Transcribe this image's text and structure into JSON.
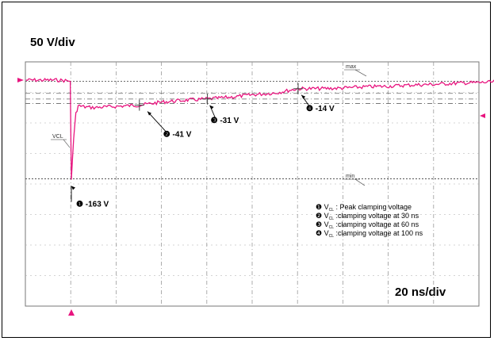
{
  "chart_data": {
    "type": "line",
    "vertical_scale": "50 V/div",
    "horizontal_scale": "20 ns/div",
    "grid": true,
    "trace_color": "#e8157f",
    "marker_labels": {
      "max": "max",
      "min": "min",
      "vcl": "VCL"
    },
    "series": [
      {
        "x_ns": [
          -20,
          -6,
          -2,
          -0.5,
          0,
          1,
          2,
          3,
          6,
          10,
          20,
          30,
          40,
          50,
          60,
          70,
          80,
          90,
          100,
          110,
          120,
          130,
          140,
          150,
          160,
          170,
          180,
          190,
          200
        ],
        "v": [
          0,
          0,
          -1,
          -2,
          -163,
          -95,
          -55,
          -42,
          -44,
          -45,
          -43,
          -41,
          -36,
          -33,
          -31,
          -28,
          -24,
          -21,
          -14,
          -14,
          -13,
          -11,
          -10,
          -8,
          -7,
          -5,
          -4,
          -3,
          -1
        ]
      }
    ],
    "annotations": [
      {
        "num": "❶",
        "text": "-163 V",
        "x_ns": 0,
        "v": -163
      },
      {
        "num": "❷",
        "text": "-41 V",
        "x_ns": 30,
        "v": -41
      },
      {
        "num": "❸",
        "text": "-31 V",
        "x_ns": 60,
        "v": -31
      },
      {
        "num": "❹",
        "text": "-14 V",
        "x_ns": 100,
        "v": -14
      }
    ],
    "legend": [
      {
        "num": "❶",
        "text": ": Peak clamping  voltage"
      },
      {
        "num": "❷",
        "text": ":clamping voltage at 30 ns"
      },
      {
        "num": "❸",
        "text": ":clamping voltage at 60 ns"
      },
      {
        "num": "❹",
        "text": ":clamping voltage at 100 ns"
      }
    ],
    "legend_prefix": "V",
    "legend_sub": "CL"
  }
}
